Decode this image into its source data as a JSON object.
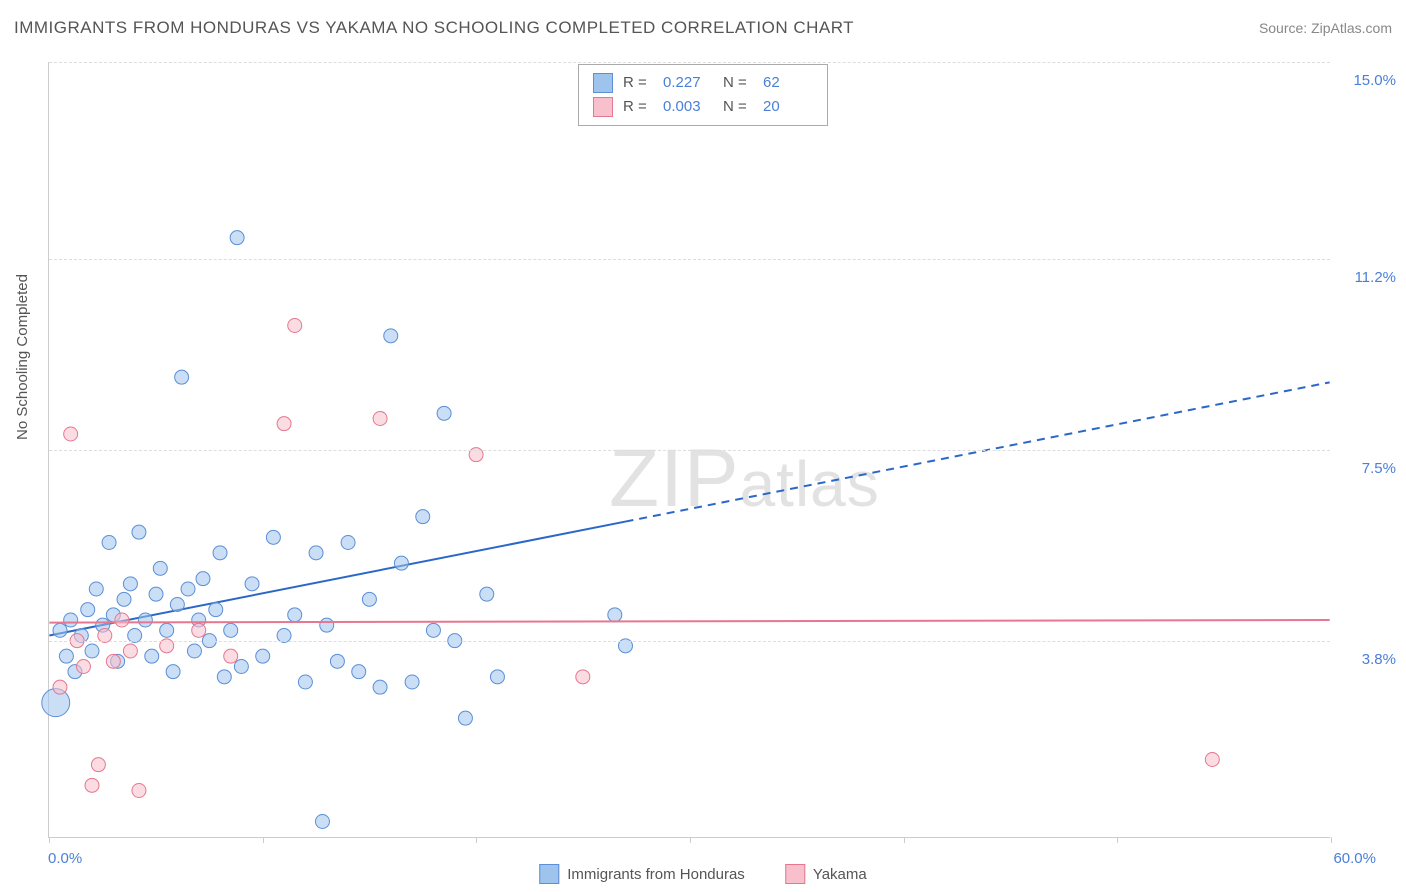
{
  "title": "IMMIGRANTS FROM HONDURAS VS YAKAMA NO SCHOOLING COMPLETED CORRELATION CHART",
  "source": "Source: ZipAtlas.com",
  "y_axis_label": "No Schooling Completed",
  "watermark_text": "ZIPatlas",
  "chart": {
    "type": "scatter",
    "xlim": [
      0.0,
      60.0
    ],
    "ylim": [
      0.0,
      15.0
    ],
    "x_ticks": [
      0.0,
      60.0
    ],
    "x_tick_pos": [
      0,
      10,
      20,
      30,
      40,
      50,
      60
    ],
    "y_grid": [
      3.8,
      7.5,
      11.2,
      15.0
    ],
    "y_tick_labels": [
      "3.8%",
      "7.5%",
      "11.2%",
      "15.0%"
    ],
    "x_tick_labels": [
      "0.0%",
      "60.0%"
    ],
    "background_color": "#ffffff",
    "grid_color": "#dddddd",
    "axis_color": "#cccccc",
    "series": [
      {
        "name": "Immigrants from Honduras",
        "fill": "#9ec3ed",
        "stroke": "#5b8fd6",
        "r_value": "0.227",
        "n_value": "62",
        "trend": {
          "x1": 0.0,
          "y1": 3.9,
          "x2": 60.0,
          "y2": 8.8,
          "solid_until_x": 27.0,
          "stroke": "#2b67c8",
          "width": 2
        },
        "points": [
          {
            "x": 0.3,
            "y": 2.6,
            "r": 14
          },
          {
            "x": 0.5,
            "y": 4.0,
            "r": 7
          },
          {
            "x": 0.8,
            "y": 3.5,
            "r": 7
          },
          {
            "x": 1.0,
            "y": 4.2,
            "r": 7
          },
          {
            "x": 1.2,
            "y": 3.2,
            "r": 7
          },
          {
            "x": 1.5,
            "y": 3.9,
            "r": 7
          },
          {
            "x": 1.8,
            "y": 4.4,
            "r": 7
          },
          {
            "x": 2.0,
            "y": 3.6,
            "r": 7
          },
          {
            "x": 2.2,
            "y": 4.8,
            "r": 7
          },
          {
            "x": 2.5,
            "y": 4.1,
            "r": 7
          },
          {
            "x": 2.8,
            "y": 5.7,
            "r": 7
          },
          {
            "x": 3.0,
            "y": 4.3,
            "r": 7
          },
          {
            "x": 3.2,
            "y": 3.4,
            "r": 7
          },
          {
            "x": 3.5,
            "y": 4.6,
            "r": 7
          },
          {
            "x": 3.8,
            "y": 4.9,
            "r": 7
          },
          {
            "x": 4.0,
            "y": 3.9,
            "r": 7
          },
          {
            "x": 4.2,
            "y": 5.9,
            "r": 7
          },
          {
            "x": 4.5,
            "y": 4.2,
            "r": 7
          },
          {
            "x": 4.8,
            "y": 3.5,
            "r": 7
          },
          {
            "x": 5.0,
            "y": 4.7,
            "r": 7
          },
          {
            "x": 5.2,
            "y": 5.2,
            "r": 7
          },
          {
            "x": 5.5,
            "y": 4.0,
            "r": 7
          },
          {
            "x": 5.8,
            "y": 3.2,
            "r": 7
          },
          {
            "x": 6.0,
            "y": 4.5,
            "r": 7
          },
          {
            "x": 6.2,
            "y": 8.9,
            "r": 7
          },
          {
            "x": 6.5,
            "y": 4.8,
            "r": 7
          },
          {
            "x": 6.8,
            "y": 3.6,
            "r": 7
          },
          {
            "x": 7.0,
            "y": 4.2,
            "r": 7
          },
          {
            "x": 7.2,
            "y": 5.0,
            "r": 7
          },
          {
            "x": 7.5,
            "y": 3.8,
            "r": 7
          },
          {
            "x": 7.8,
            "y": 4.4,
            "r": 7
          },
          {
            "x": 8.0,
            "y": 5.5,
            "r": 7
          },
          {
            "x": 8.2,
            "y": 3.1,
            "r": 7
          },
          {
            "x": 8.5,
            "y": 4.0,
            "r": 7
          },
          {
            "x": 8.8,
            "y": 11.6,
            "r": 7
          },
          {
            "x": 9.0,
            "y": 3.3,
            "r": 7
          },
          {
            "x": 9.5,
            "y": 4.9,
            "r": 7
          },
          {
            "x": 10.0,
            "y": 3.5,
            "r": 7
          },
          {
            "x": 10.5,
            "y": 5.8,
            "r": 7
          },
          {
            "x": 11.0,
            "y": 3.9,
            "r": 7
          },
          {
            "x": 11.5,
            "y": 4.3,
            "r": 7
          },
          {
            "x": 12.0,
            "y": 3.0,
            "r": 7
          },
          {
            "x": 12.5,
            "y": 5.5,
            "r": 7
          },
          {
            "x": 12.8,
            "y": 0.3,
            "r": 7
          },
          {
            "x": 13.0,
            "y": 4.1,
            "r": 7
          },
          {
            "x": 13.5,
            "y": 3.4,
            "r": 7
          },
          {
            "x": 14.0,
            "y": 5.7,
            "r": 7
          },
          {
            "x": 14.5,
            "y": 3.2,
            "r": 7
          },
          {
            "x": 15.0,
            "y": 4.6,
            "r": 7
          },
          {
            "x": 15.5,
            "y": 2.9,
            "r": 7
          },
          {
            "x": 16.0,
            "y": 9.7,
            "r": 7
          },
          {
            "x": 16.5,
            "y": 5.3,
            "r": 7
          },
          {
            "x": 17.0,
            "y": 3.0,
            "r": 7
          },
          {
            "x": 17.5,
            "y": 6.2,
            "r": 7
          },
          {
            "x": 18.0,
            "y": 4.0,
            "r": 7
          },
          {
            "x": 18.5,
            "y": 8.2,
            "r": 7
          },
          {
            "x": 19.0,
            "y": 3.8,
            "r": 7
          },
          {
            "x": 19.5,
            "y": 2.3,
            "r": 7
          },
          {
            "x": 20.5,
            "y": 4.7,
            "r": 7
          },
          {
            "x": 21.0,
            "y": 3.1,
            "r": 7
          },
          {
            "x": 26.5,
            "y": 4.3,
            "r": 7
          },
          {
            "x": 27.0,
            "y": 3.7,
            "r": 7
          }
        ]
      },
      {
        "name": "Yakama",
        "fill": "#f7c0cc",
        "stroke": "#e6778f",
        "r_value": "0.003",
        "n_value": "20",
        "trend": {
          "x1": 0.0,
          "y1": 4.15,
          "x2": 60.0,
          "y2": 4.2,
          "solid_until_x": 60.0,
          "stroke": "#e6778f",
          "width": 2
        },
        "points": [
          {
            "x": 0.5,
            "y": 2.9,
            "r": 7
          },
          {
            "x": 1.0,
            "y": 7.8,
            "r": 7
          },
          {
            "x": 1.3,
            "y": 3.8,
            "r": 7
          },
          {
            "x": 1.6,
            "y": 3.3,
            "r": 7
          },
          {
            "x": 2.0,
            "y": 1.0,
            "r": 7
          },
          {
            "x": 2.3,
            "y": 1.4,
            "r": 7
          },
          {
            "x": 2.6,
            "y": 3.9,
            "r": 7
          },
          {
            "x": 3.0,
            "y": 3.4,
            "r": 7
          },
          {
            "x": 3.4,
            "y": 4.2,
            "r": 7
          },
          {
            "x": 3.8,
            "y": 3.6,
            "r": 7
          },
          {
            "x": 4.2,
            "y": 0.9,
            "r": 7
          },
          {
            "x": 5.5,
            "y": 3.7,
            "r": 7
          },
          {
            "x": 7.0,
            "y": 4.0,
            "r": 7
          },
          {
            "x": 11.0,
            "y": 8.0,
            "r": 7
          },
          {
            "x": 11.5,
            "y": 9.9,
            "r": 7
          },
          {
            "x": 15.5,
            "y": 8.1,
            "r": 7
          },
          {
            "x": 20.0,
            "y": 7.4,
            "r": 7
          },
          {
            "x": 25.0,
            "y": 3.1,
            "r": 7
          },
          {
            "x": 54.5,
            "y": 1.5,
            "r": 7
          },
          {
            "x": 8.5,
            "y": 3.5,
            "r": 7
          }
        ]
      }
    ]
  },
  "legend_top": {
    "r_label": "R  =",
    "n_label": "N  ="
  },
  "colors": {
    "text": "#555555",
    "link": "#4a7fd8"
  }
}
